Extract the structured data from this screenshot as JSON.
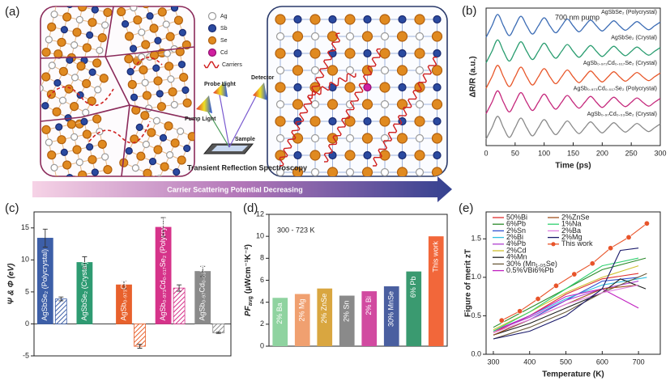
{
  "diagram": {
    "label": "(a)",
    "legend": [
      "Ag",
      "Sb",
      "Se",
      "Cd",
      "Carriers"
    ],
    "setup": [
      "Probe Light",
      "Detector",
      "Pump Light",
      "Sample"
    ],
    "caption": "Transient Reflection Spectroscopy",
    "arrow": "Carrier Scattering Potential Decreasing"
  },
  "chart_data": [
    {
      "type": "line",
      "label": "(b)",
      "annotation": "700 nm pump",
      "xlabel": "Time (ps)",
      "ylabel": "ΔR/R (a.u.)",
      "curve": "smooth",
      "x": [
        0,
        10,
        20,
        30,
        40,
        50,
        60,
        70,
        80,
        90,
        100,
        110,
        120,
        130,
        140,
        150,
        160,
        170,
        180,
        190,
        200,
        210,
        220,
        230,
        240,
        250,
        260,
        270,
        280,
        290,
        300
      ],
      "xlim": [
        0,
        300
      ],
      "xticks": [
        0,
        50,
        100,
        150,
        200,
        250,
        300
      ],
      "ylim": [
        -0.7,
        4.7
      ],
      "series": [
        {
          "name": "AgSbSe₂ (Polycrystal)",
          "color": "#3d6db5",
          "values": [
            3.55,
            4,
            4.45,
            4,
            3.62,
            4,
            4.38,
            4,
            3.68,
            4,
            4.32,
            4,
            3.73,
            4,
            4.27,
            4,
            3.77,
            4,
            4.23,
            4,
            3.8,
            4,
            4.2,
            4,
            3.83,
            4,
            4.17,
            4,
            3.85,
            4,
            4.15
          ]
        },
        {
          "name": "AgSbSe₂ (Crystal)",
          "color": "#2a9d70",
          "values": [
            2.55,
            3,
            3.45,
            3,
            2.62,
            3,
            3.38,
            3,
            2.68,
            3,
            3.32,
            3,
            2.73,
            3,
            3.27,
            3,
            2.77,
            3,
            3.23,
            3,
            2.8,
            3,
            3.2,
            3,
            2.83,
            3,
            3.17,
            3,
            2.85,
            3,
            3.15
          ]
        },
        {
          "name": "AgSb₀.₉₇₃Cd₀.₀₁₇Se₂ (Crystal)",
          "color": "#e8572a",
          "values": [
            1.55,
            2,
            2.45,
            2,
            1.62,
            2,
            2.38,
            2,
            1.68,
            2,
            2.32,
            2,
            1.73,
            2,
            2.27,
            2,
            1.77,
            2,
            2.23,
            2,
            1.8,
            2,
            2.2,
            2,
            1.83,
            2,
            2.17,
            2,
            1.85,
            2,
            2.15
          ]
        },
        {
          "name": "AgSb₀.₉₇₃Cd₀.₀₁₇Se₂ (Polycrystal)",
          "color": "#c5287c",
          "values": [
            0.55,
            1,
            1.45,
            1,
            0.62,
            1,
            1.38,
            1,
            0.68,
            1,
            1.32,
            1,
            0.73,
            1,
            1.27,
            1,
            0.77,
            1,
            1.23,
            1,
            0.8,
            1,
            1.2,
            1,
            0.83,
            1,
            1.17,
            1,
            0.85,
            1,
            1.15
          ]
        },
        {
          "name": "AgSb₀.₉₇Cd₀.₀₃Se₂ (Crystal)",
          "color": "#8a8a8a",
          "values": [
            -0.45,
            0,
            0.45,
            0,
            -0.38,
            0,
            0.38,
            0,
            -0.32,
            0,
            0.32,
            0,
            -0.27,
            0,
            0.27,
            0,
            -0.23,
            0,
            0.23,
            0,
            -0.2,
            0,
            0.2,
            0,
            -0.17,
            0,
            0.17,
            0,
            -0.15,
            0,
            0.15
          ]
        }
      ]
    },
    {
      "type": "bar",
      "label": "(c)",
      "ylabel": "Ψ & Φ (eV)",
      "categories": [
        "AgSbSe₂ (Polycrystal)",
        "AgSbSe₂ (Crystal)",
        "AgSb₀.₉₇₃Cd₀.₀₁₇Se₂ (Crystal)",
        "AgSb₀.₉₇₃Cd₀.₀₁₇Se₂ (Polycrystal)",
        "AgSb₀.₉₇Cd₀.₀₃Se₂ (Crystal)"
      ],
      "colors": [
        "#3d5fa8",
        "#2e9b72",
        "#e8612c",
        "#d6338a",
        "#8a8a8a"
      ],
      "ylim": [
        -5,
        17.5
      ],
      "yticks": [
        -5,
        0,
        5,
        10,
        15
      ],
      "series": [
        {
          "values": [
            13.4,
            9.6,
            6.1,
            15.1,
            8.2
          ],
          "errors": [
            1.4,
            0.9,
            0.6,
            1.5,
            0.8
          ]
        },
        {
          "values": [
            3.9,
            null,
            -3.5,
            5.6,
            -1.4
          ],
          "errors": [
            0.3,
            null,
            0.3,
            0.5,
            0.1
          ],
          "pattern": "hatched"
        }
      ]
    },
    {
      "type": "bar",
      "label": "(d)",
      "annotation": "300 - 723 K",
      "ylabel": [
        "PF",
        "avg",
        "(μWcm⁻¹K⁻²)"
      ],
      "categories": [
        "2% Ba",
        "2% Mg",
        "2% ZnSe",
        "2% Sn",
        "2% Bi",
        "30% MnSe",
        "6% Pb",
        "This work"
      ],
      "values": [
        4.4,
        4.75,
        5.25,
        4.6,
        5.0,
        5.45,
        6.8,
        10.0
      ],
      "colors": [
        "#8fd3a0",
        "#f0a070",
        "#d9a640",
        "#8a8a8a",
        "#d14aa0",
        "#4a5fa0",
        "#3a9a70",
        "#f2673a"
      ],
      "ylim": [
        0,
        12
      ],
      "yticks": [
        0,
        2,
        4,
        6,
        8,
        10,
        12
      ]
    },
    {
      "type": "line",
      "label": "(e)",
      "xlabel": "Temperature (K)",
      "ylabel": "Figure of merit zT",
      "legend": "top-left",
      "xlim": [
        280,
        760
      ],
      "xticks": [
        300,
        400,
        500,
        600,
        700
      ],
      "ylim": [
        0,
        1.85
      ],
      "yticks": [
        {
          "value": 0,
          "label": "0.0"
        },
        0.5,
        {
          "value": 1,
          "label": "1.0"
        },
        1.5
      ],
      "series": [
        {
          "name": "50%Bi",
          "color": "#e03030",
          "x": [
            300,
            400,
            500,
            600,
            700
          ],
          "values": [
            0.28,
            0.5,
            0.78,
            0.98,
            1.05
          ]
        },
        {
          "name": "6%Pb",
          "color": "#2a8a2a",
          "x": [
            300,
            400,
            500,
            600,
            720
          ],
          "values": [
            0.35,
            0.6,
            0.85,
            1.1,
            1.25
          ]
        },
        {
          "name": "2%Sn",
          "color": "#3050d0",
          "x": [
            300,
            400,
            500,
            600,
            700
          ],
          "values": [
            0.25,
            0.45,
            0.7,
            0.95,
            1.0
          ]
        },
        {
          "name": "2%Bi",
          "color": "#30c0e0",
          "x": [
            300,
            400,
            500,
            600,
            723
          ],
          "values": [
            0.3,
            0.5,
            0.72,
            0.9,
            1.0
          ]
        },
        {
          "name": "4%Pb",
          "color": "#b040d0",
          "x": [
            300,
            400,
            500,
            600,
            700
          ],
          "values": [
            0.3,
            0.48,
            0.7,
            0.85,
            0.95
          ]
        },
        {
          "name": "2%Cd",
          "color": "#d0c030",
          "x": [
            300,
            400,
            500,
            600,
            700
          ],
          "values": [
            0.32,
            0.55,
            0.8,
            1.0,
            1.15
          ]
        },
        {
          "name": "4%Mn",
          "color": "#202020",
          "x": [
            300,
            400,
            500,
            600,
            650,
            720
          ],
          "values": [
            0.25,
            0.4,
            0.6,
            0.8,
            0.98,
            0.85
          ]
        },
        {
          "name": "30% (Mn₁.₀₅Se)",
          "color": "#6a5a3a",
          "x": [
            300,
            400,
            500,
            600,
            723
          ],
          "values": [
            0.2,
            0.35,
            0.55,
            0.8,
            1.05
          ]
        },
        {
          "name": "0.5%VBi6%Pb",
          "color": "#c020c0",
          "x": [
            300,
            400,
            500,
            600,
            700
          ],
          "values": [
            0.3,
            0.5,
            0.75,
            0.85,
            0.6
          ]
        },
        {
          "name": "2%ZnSe",
          "color": "#a05020",
          "x": [
            300,
            400,
            500,
            600,
            700
          ],
          "values": [
            0.25,
            0.45,
            0.65,
            0.85,
            0.9
          ]
        },
        {
          "name": "1%Na",
          "color": "#30d070",
          "x": [
            300,
            400,
            500,
            600,
            700
          ],
          "values": [
            0.3,
            0.55,
            0.85,
            1.15,
            1.25
          ]
        },
        {
          "name": "2%Ba",
          "color": "#e080e0",
          "x": [
            300,
            400,
            500,
            600,
            700
          ],
          "values": [
            0.28,
            0.45,
            0.65,
            0.8,
            0.9
          ]
        },
        {
          "name": "2%Mg",
          "color": "#1a1a6a",
          "x": [
            300,
            400,
            500,
            600,
            650,
            700
          ],
          "values": [
            0.2,
            0.3,
            0.5,
            0.85,
            1.35,
            1.38
          ]
        },
        {
          "name": "This work",
          "color": "#e8542a",
          "marker": "circle",
          "x": [
            323,
            373,
            423,
            473,
            523,
            573,
            623,
            673,
            723
          ],
          "values": [
            0.44,
            0.56,
            0.72,
            0.89,
            1.04,
            1.18,
            1.38,
            1.52,
            1.7
          ]
        }
      ]
    }
  ]
}
